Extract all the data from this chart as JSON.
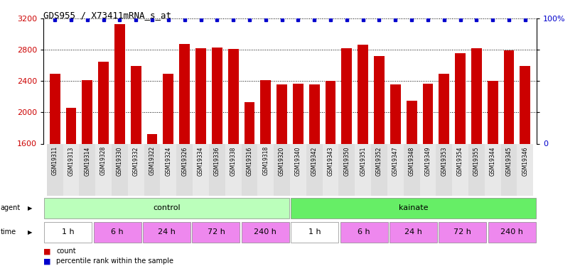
{
  "title": "GDS955 / X73411mRNA_s_at",
  "samples": [
    "GSM19311",
    "GSM19313",
    "GSM19314",
    "GSM19328",
    "GSM19330",
    "GSM19332",
    "GSM19322",
    "GSM19324",
    "GSM19326",
    "GSM19334",
    "GSM19336",
    "GSM19338",
    "GSM19316",
    "GSM19318",
    "GSM19320",
    "GSM19340",
    "GSM19342",
    "GSM19343",
    "GSM19350",
    "GSM19351",
    "GSM19352",
    "GSM19347",
    "GSM19348",
    "GSM19349",
    "GSM19353",
    "GSM19354",
    "GSM19355",
    "GSM19344",
    "GSM19345",
    "GSM19346"
  ],
  "bar_values": [
    2490,
    2060,
    2410,
    2650,
    3130,
    2590,
    1720,
    2490,
    2880,
    2820,
    2830,
    2810,
    2130,
    2410,
    2360,
    2370,
    2360,
    2400,
    2820,
    2870,
    2720,
    2360,
    2150,
    2370,
    2490,
    2760,
    2820,
    2400,
    2790,
    2590
  ],
  "percentile_values": [
    99,
    99,
    99,
    99,
    99,
    99,
    99,
    99,
    99,
    99,
    99,
    99,
    99,
    99,
    99,
    99,
    99,
    99,
    99,
    99,
    99,
    99,
    99,
    99,
    99,
    99,
    99,
    99,
    99,
    99
  ],
  "bar_color": "#cc0000",
  "dot_color": "#0000cc",
  "ylim_left": [
    1600,
    3200
  ],
  "ylim_right": [
    0,
    100
  ],
  "yticks_left": [
    1600,
    2000,
    2400,
    2800,
    3200
  ],
  "yticks_right": [
    0,
    25,
    50,
    75,
    100
  ],
  "agent_groups": [
    {
      "label": "control",
      "start": 0,
      "end": 15,
      "color": "#bbffbb"
    },
    {
      "label": "kainate",
      "start": 15,
      "end": 30,
      "color": "#66ee66"
    }
  ],
  "time_groups": [
    {
      "label": "1 h",
      "start": 0,
      "end": 3,
      "color": "#ffffff"
    },
    {
      "label": "6 h",
      "start": 3,
      "end": 6,
      "color": "#ee88ee"
    },
    {
      "label": "24 h",
      "start": 6,
      "end": 9,
      "color": "#ee88ee"
    },
    {
      "label": "72 h",
      "start": 9,
      "end": 12,
      "color": "#ee88ee"
    },
    {
      "label": "240 h",
      "start": 12,
      "end": 15,
      "color": "#ee88ee"
    },
    {
      "label": "1 h",
      "start": 15,
      "end": 18,
      "color": "#ffffff"
    },
    {
      "label": "6 h",
      "start": 18,
      "end": 21,
      "color": "#ee88ee"
    },
    {
      "label": "24 h",
      "start": 21,
      "end": 24,
      "color": "#ee88ee"
    },
    {
      "label": "72 h",
      "start": 24,
      "end": 27,
      "color": "#ee88ee"
    },
    {
      "label": "240 h",
      "start": 27,
      "end": 30,
      "color": "#ee88ee"
    }
  ],
  "legend_count_color": "#cc0000",
  "legend_pct_color": "#0000cc",
  "bg_color": "#ffffff",
  "tick_label_color_left": "#cc0000",
  "tick_label_color_right": "#0000cc",
  "label_fontsize": 5.5,
  "axis_fontsize": 8,
  "title_fontsize": 9
}
